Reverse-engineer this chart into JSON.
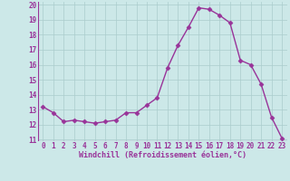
{
  "x": [
    0,
    1,
    2,
    3,
    4,
    5,
    6,
    7,
    8,
    9,
    10,
    11,
    12,
    13,
    14,
    15,
    16,
    17,
    18,
    19,
    20,
    21,
    22,
    23
  ],
  "y": [
    13.2,
    12.8,
    12.2,
    12.3,
    12.2,
    12.1,
    12.2,
    12.3,
    12.8,
    12.8,
    13.3,
    13.8,
    15.8,
    17.3,
    18.5,
    19.8,
    19.7,
    19.3,
    18.8,
    16.3,
    16.0,
    14.7,
    12.5,
    11.1
  ],
  "line_color": "#993399",
  "marker": "D",
  "markersize": 2.5,
  "linewidth": 1.0,
  "bg_color": "#cce8e8",
  "grid_color": "#aacccc",
  "xlabel": "Windchill (Refroidissement éolien,°C)",
  "xlabel_color": "#993399",
  "tick_color": "#993399",
  "label_color": "#993399",
  "ylim": [
    11,
    20
  ],
  "xlim": [
    -0.5,
    23.5
  ],
  "yticks": [
    11,
    12,
    13,
    14,
    15,
    16,
    17,
    18,
    19,
    20
  ],
  "xticks": [
    0,
    1,
    2,
    3,
    4,
    5,
    6,
    7,
    8,
    9,
    10,
    11,
    12,
    13,
    14,
    15,
    16,
    17,
    18,
    19,
    20,
    21,
    22,
    23
  ],
  "tick_fontsize": 5.5,
  "xlabel_fontsize": 6.0
}
